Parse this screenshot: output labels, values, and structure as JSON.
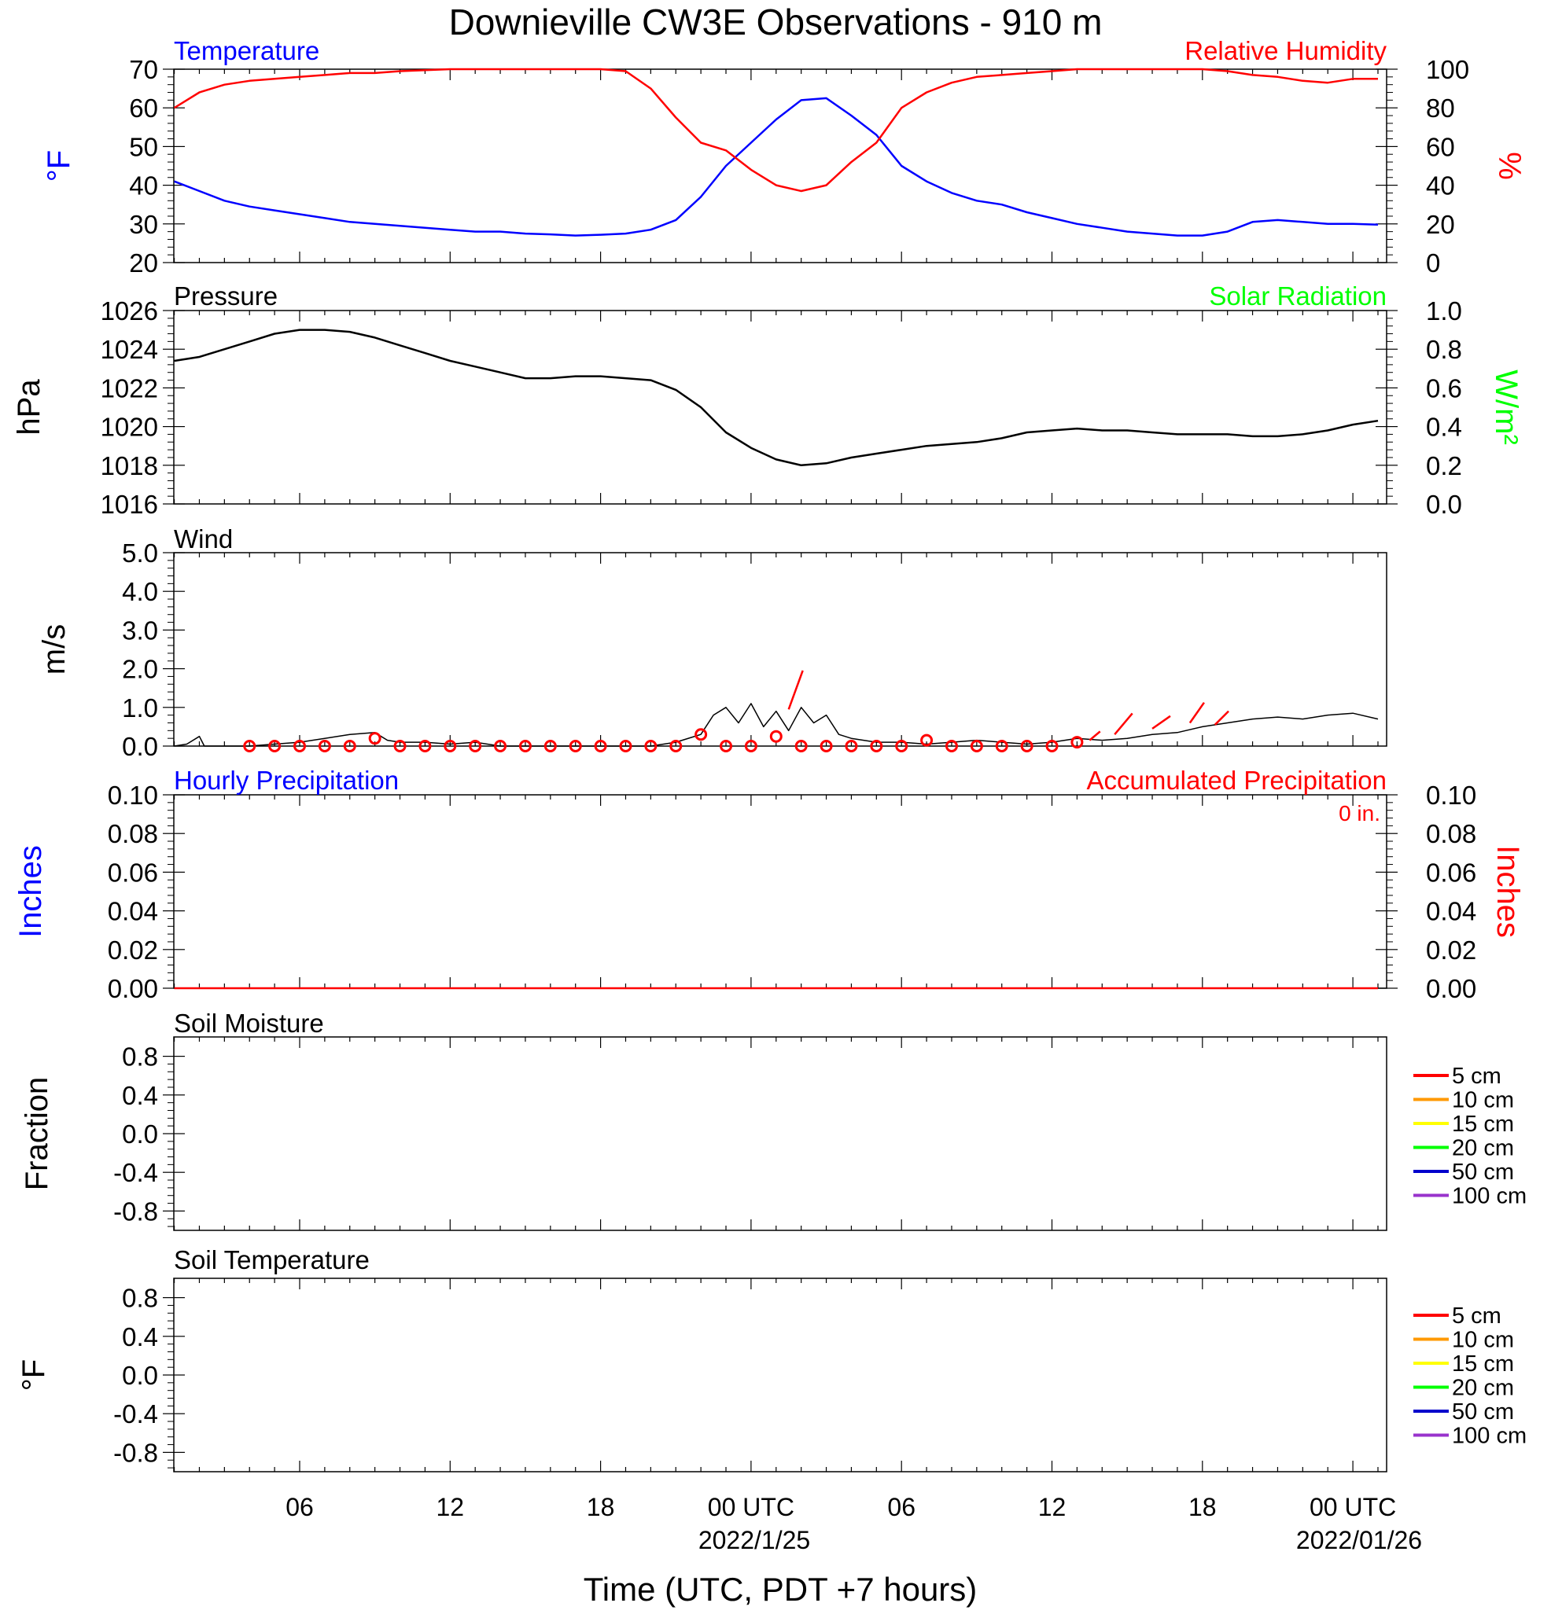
{
  "title": "Downieville CW3E Observations - 910 m",
  "xaxis": {
    "title": "Time (UTC, PDT +7 hours)",
    "ticks": [
      "06",
      "12",
      "18",
      "00 UTC",
      "06",
      "12",
      "18",
      "00 UTC"
    ],
    "dates": [
      "2022/1/25",
      "2022/01/26"
    ]
  },
  "colors": {
    "temperature": "#0000ff",
    "humidity": "#ff0000",
    "pressure": "#000000",
    "solar": "#00ff00",
    "wind": "#000000",
    "gust": "#ff0000",
    "precip_hourly": "#0000ff",
    "precip_accum": "#ff0000"
  },
  "legend": {
    "labels": [
      "5 cm",
      "10 cm",
      "15 cm",
      "20 cm",
      "50 cm",
      "100 cm"
    ],
    "colors": [
      "#ff0000",
      "#ff9900",
      "#ffff00",
      "#00ff00",
      "#0000cc",
      "#9933cc"
    ]
  },
  "panels": {
    "temp": {
      "left_title": "Temperature",
      "right_title": "Relative Humidity",
      "left_unit": "°F",
      "right_unit": "%",
      "left_ticks": [
        "70",
        "60",
        "50",
        "40",
        "30",
        "20"
      ],
      "right_ticks": [
        "100",
        "80",
        "60",
        "40",
        "20",
        "0"
      ]
    },
    "pressure": {
      "left_title": "Pressure",
      "right_title": "Solar Radiation",
      "left_unit": "hPa",
      "right_unit": "W/m²",
      "left_ticks": [
        "1026",
        "1024",
        "1022",
        "1020",
        "1018",
        "1016"
      ],
      "right_ticks": [
        "1.0",
        "0.8",
        "0.6",
        "0.4",
        "0.2",
        "0.0"
      ]
    },
    "wind": {
      "left_title": "Wind",
      "left_unit": "m/s",
      "left_ticks": [
        "5.0",
        "4.0",
        "3.0",
        "2.0",
        "1.0",
        "0.0"
      ]
    },
    "precip": {
      "left_title": "Hourly Precipitation",
      "right_title": "Accumulated Precipitation",
      "accum_label": "0 in.",
      "left_unit": "Inches",
      "right_unit": "Inches",
      "left_ticks": [
        "0.10",
        "0.08",
        "0.06",
        "0.04",
        "0.02",
        "0.00"
      ],
      "right_ticks": [
        "0.10",
        "0.08",
        "0.06",
        "0.04",
        "0.02",
        "0.00"
      ]
    },
    "soilm": {
      "left_title": "Soil Moisture",
      "left_unit": "Fraction",
      "left_ticks": [
        "0.8",
        "0.4",
        "0.0",
        "-0.4",
        "-0.8"
      ]
    },
    "soilt": {
      "left_title": "Soil Temperature",
      "left_unit": "°F",
      "left_ticks": [
        "0.8",
        "0.4",
        "0.0",
        "-0.4",
        "-0.8"
      ]
    }
  },
  "chart_data": {
    "type": "line",
    "x_unit": "hours since 2022-01-24 01 UTC",
    "x_range": [
      0,
      48
    ],
    "x_tick_hours": [
      5,
      11,
      17,
      23,
      29,
      35,
      41,
      47
    ],
    "temperature": {
      "ylim": [
        20,
        70
      ],
      "points": [
        [
          0,
          41
        ],
        [
          1,
          38.5
        ],
        [
          2,
          36
        ],
        [
          3,
          34.5
        ],
        [
          4,
          33.5
        ],
        [
          5,
          32.5
        ],
        [
          6,
          31.5
        ],
        [
          7,
          30.5
        ],
        [
          8,
          30
        ],
        [
          9,
          29.5
        ],
        [
          10,
          29
        ],
        [
          11,
          28.5
        ],
        [
          12,
          28
        ],
        [
          13,
          28
        ],
        [
          14,
          27.5
        ],
        [
          15,
          27.3
        ],
        [
          16,
          27
        ],
        [
          17,
          27.2
        ],
        [
          18,
          27.5
        ],
        [
          19,
          28.5
        ],
        [
          20,
          31
        ],
        [
          21,
          37
        ],
        [
          22,
          45
        ],
        [
          23,
          51
        ],
        [
          24,
          57
        ],
        [
          25,
          62
        ],
        [
          26,
          62.5
        ],
        [
          27,
          58
        ],
        [
          28,
          53
        ],
        [
          29,
          45
        ],
        [
          30,
          41
        ],
        [
          31,
          38
        ],
        [
          32,
          36
        ],
        [
          33,
          35
        ],
        [
          34,
          33
        ],
        [
          35,
          31.5
        ],
        [
          36,
          30
        ],
        [
          37,
          29
        ],
        [
          38,
          28
        ],
        [
          39,
          27.5
        ],
        [
          40,
          27
        ],
        [
          41,
          27
        ],
        [
          42,
          28
        ],
        [
          43,
          30.5
        ],
        [
          44,
          31
        ],
        [
          45,
          30.5
        ],
        [
          46,
          30
        ],
        [
          47,
          30
        ],
        [
          48,
          29.8
        ]
      ]
    },
    "humidity": {
      "ylim": [
        0,
        100
      ],
      "points": [
        [
          0,
          80
        ],
        [
          1,
          88
        ],
        [
          2,
          92
        ],
        [
          3,
          94
        ],
        [
          4,
          95
        ],
        [
          5,
          96
        ],
        [
          6,
          97
        ],
        [
          7,
          98
        ],
        [
          8,
          98
        ],
        [
          9,
          99
        ],
        [
          10,
          99.5
        ],
        [
          11,
          100
        ],
        [
          12,
          100
        ],
        [
          13,
          100
        ],
        [
          14,
          100
        ],
        [
          15,
          100
        ],
        [
          16,
          100
        ],
        [
          17,
          100
        ],
        [
          18,
          99
        ],
        [
          19,
          90
        ],
        [
          20,
          75
        ],
        [
          21,
          62
        ],
        [
          22,
          58
        ],
        [
          23,
          48
        ],
        [
          24,
          40
        ],
        [
          25,
          37
        ],
        [
          26,
          40
        ],
        [
          27,
          52
        ],
        [
          28,
          62
        ],
        [
          29,
          80
        ],
        [
          30,
          88
        ],
        [
          31,
          93
        ],
        [
          32,
          96
        ],
        [
          33,
          97
        ],
        [
          34,
          98
        ],
        [
          35,
          99
        ],
        [
          36,
          100
        ],
        [
          37,
          100
        ],
        [
          38,
          100
        ],
        [
          39,
          100
        ],
        [
          40,
          100
        ],
        [
          41,
          100
        ],
        [
          42,
          99
        ],
        [
          43,
          97
        ],
        [
          44,
          96
        ],
        [
          45,
          94
        ],
        [
          46,
          93
        ],
        [
          47,
          95
        ],
        [
          48,
          95
        ]
      ]
    },
    "pressure": {
      "ylim": [
        1016,
        1026
      ],
      "points": [
        [
          0,
          1023.4
        ],
        [
          1,
          1023.6
        ],
        [
          2,
          1024
        ],
        [
          3,
          1024.4
        ],
        [
          4,
          1024.8
        ],
        [
          5,
          1025
        ],
        [
          6,
          1025
        ],
        [
          7,
          1024.9
        ],
        [
          8,
          1024.6
        ],
        [
          9,
          1024.2
        ],
        [
          10,
          1023.8
        ],
        [
          11,
          1023.4
        ],
        [
          12,
          1023.1
        ],
        [
          13,
          1022.8
        ],
        [
          14,
          1022.5
        ],
        [
          15,
          1022.5
        ],
        [
          16,
          1022.6
        ],
        [
          17,
          1022.6
        ],
        [
          18,
          1022.5
        ],
        [
          19,
          1022.4
        ],
        [
          20,
          1021.9
        ],
        [
          21,
          1021
        ],
        [
          22,
          1019.7
        ],
        [
          23,
          1018.9
        ],
        [
          24,
          1018.3
        ],
        [
          25,
          1018
        ],
        [
          26,
          1018.1
        ],
        [
          27,
          1018.4
        ],
        [
          28,
          1018.6
        ],
        [
          29,
          1018.8
        ],
        [
          30,
          1019
        ],
        [
          31,
          1019.1
        ],
        [
          32,
          1019.2
        ],
        [
          33,
          1019.4
        ],
        [
          34,
          1019.7
        ],
        [
          35,
          1019.8
        ],
        [
          36,
          1019.9
        ],
        [
          37,
          1019.8
        ],
        [
          38,
          1019.8
        ],
        [
          39,
          1019.7
        ],
        [
          40,
          1019.6
        ],
        [
          41,
          1019.6
        ],
        [
          42,
          1019.6
        ],
        [
          43,
          1019.5
        ],
        [
          44,
          1019.5
        ],
        [
          45,
          1019.6
        ],
        [
          46,
          1019.8
        ],
        [
          47,
          1020.1
        ],
        [
          48,
          1020.3
        ]
      ]
    },
    "wind_speed": {
      "ylim": [
        0,
        5
      ],
      "points": [
        [
          0,
          0
        ],
        [
          0.5,
          0.05
        ],
        [
          1,
          0.25
        ],
        [
          1.2,
          0
        ],
        [
          3,
          0
        ],
        [
          4,
          0.05
        ],
        [
          5,
          0.1
        ],
        [
          6,
          0.2
        ],
        [
          7,
          0.3
        ],
        [
          8,
          0.35
        ],
        [
          8.5,
          0.15
        ],
        [
          9,
          0.1
        ],
        [
          10,
          0.1
        ],
        [
          11,
          0.05
        ],
        [
          12,
          0.1
        ],
        [
          13,
          0
        ],
        [
          14,
          0
        ],
        [
          15,
          0
        ],
        [
          16,
          0
        ],
        [
          17,
          0
        ],
        [
          18,
          0
        ],
        [
          19,
          0
        ],
        [
          20,
          0.1
        ],
        [
          21,
          0.3
        ],
        [
          21.5,
          0.8
        ],
        [
          22,
          1
        ],
        [
          22.5,
          0.6
        ],
        [
          23,
          1.1
        ],
        [
          23.5,
          0.5
        ],
        [
          24,
          0.9
        ],
        [
          24.5,
          0.4
        ],
        [
          25,
          1
        ],
        [
          25.5,
          0.6
        ],
        [
          26,
          0.8
        ],
        [
          26.5,
          0.3
        ],
        [
          27,
          0.2
        ],
        [
          28,
          0.1
        ],
        [
          29,
          0.1
        ],
        [
          30,
          0.05
        ],
        [
          31,
          0.1
        ],
        [
          32,
          0.15
        ],
        [
          33,
          0.1
        ],
        [
          34,
          0.05
        ],
        [
          35,
          0.1
        ],
        [
          36,
          0.2
        ],
        [
          37,
          0.15
        ],
        [
          38,
          0.2
        ],
        [
          39,
          0.3
        ],
        [
          40,
          0.35
        ],
        [
          41,
          0.5
        ],
        [
          42,
          0.6
        ],
        [
          43,
          0.7
        ],
        [
          44,
          0.75
        ],
        [
          45,
          0.7
        ],
        [
          46,
          0.8
        ],
        [
          47,
          0.85
        ],
        [
          48,
          0.7
        ]
      ]
    },
    "gust_points": [
      [
        3,
        0
      ],
      [
        4,
        0
      ],
      [
        5,
        0
      ],
      [
        6,
        0
      ],
      [
        7,
        0
      ],
      [
        8,
        0.2
      ],
      [
        9,
        0
      ],
      [
        10,
        0
      ],
      [
        11,
        0
      ],
      [
        12,
        0
      ],
      [
        13,
        0
      ],
      [
        14,
        0
      ],
      [
        15,
        0
      ],
      [
        16,
        0
      ],
      [
        17,
        0
      ],
      [
        18,
        0
      ],
      [
        19,
        0
      ],
      [
        20,
        0
      ],
      [
        21,
        0.3
      ],
      [
        22,
        0
      ],
      [
        23,
        0
      ],
      [
        24,
        0.25
      ],
      [
        25,
        0
      ],
      [
        26,
        0
      ],
      [
        27,
        0
      ],
      [
        28,
        0
      ],
      [
        29,
        0
      ],
      [
        30,
        0.15
      ],
      [
        31,
        0
      ],
      [
        32,
        0
      ],
      [
        33,
        0
      ],
      [
        34,
        0
      ],
      [
        35,
        0
      ],
      [
        36,
        0.1
      ]
    ],
    "wind_barbs": [
      [
        24.5,
        0.95,
        1.5,
        200
      ],
      [
        36.5,
        0.15,
        0.5,
        230
      ],
      [
        37.5,
        0.3,
        1,
        220
      ],
      [
        39,
        0.45,
        0.8,
        235
      ],
      [
        40.5,
        0.6,
        0.9,
        215
      ],
      [
        41.5,
        0.55,
        0.7,
        225
      ]
    ],
    "precip_hourly": [],
    "precip_accumulated": {
      "ylim": [
        0,
        0.1
      ],
      "points": [
        [
          0,
          0
        ],
        [
          48,
          0
        ]
      ]
    },
    "soil_moisture": [],
    "soil_temperature": []
  }
}
